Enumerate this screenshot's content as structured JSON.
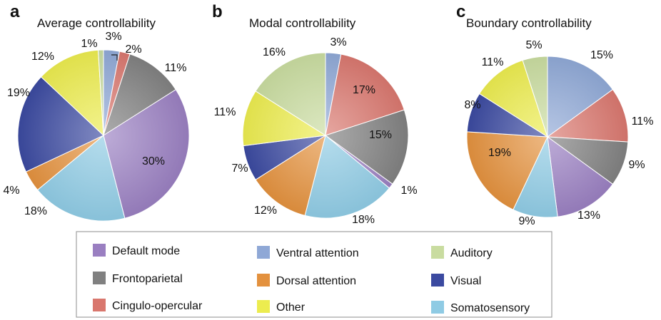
{
  "categories": [
    "Default mode",
    "Frontoparietal",
    "Cingulo-opercular",
    "Ventral attention",
    "Dorsal attention",
    "Other",
    "Auditory",
    "Visual",
    "Somatosensory"
  ],
  "colors": {
    "Default mode": "#9a7fc1",
    "Frontoparietal": "#808080",
    "Cingulo-opercular": "#d9776e",
    "Ventral attention": "#8fa8d6",
    "Dorsal attention": "#e3913e",
    "Other": "#ecec4f",
    "Auditory": "#c9dca0",
    "Visual": "#3b4aa0",
    "Somatosensory": "#8fcbe4"
  },
  "chart_data": [
    {
      "type": "pie",
      "panel": "a",
      "title": "Average controllability",
      "slices": [
        {
          "category": "Ventral attention",
          "value": 3,
          "label": "3%"
        },
        {
          "category": "Cingulo-opercular",
          "value": 2,
          "label": "2%"
        },
        {
          "category": "Frontoparietal",
          "value": 11,
          "label": "11%"
        },
        {
          "category": "Default mode",
          "value": 30,
          "label": "30%"
        },
        {
          "category": "Somatosensory",
          "value": 18,
          "label": "18%"
        },
        {
          "category": "Dorsal attention",
          "value": 4,
          "label": "4%"
        },
        {
          "category": "Visual",
          "value": 19,
          "label": "19%"
        },
        {
          "category": "Other",
          "value": 12,
          "label": "12%"
        },
        {
          "category": "Auditory",
          "value": 1,
          "label": "1%"
        }
      ]
    },
    {
      "type": "pie",
      "panel": "b",
      "title": "Modal controllability",
      "slices": [
        {
          "category": "Ventral attention",
          "value": 3,
          "label": "3%"
        },
        {
          "category": "Cingulo-opercular",
          "value": 17,
          "label": "17%"
        },
        {
          "category": "Frontoparietal",
          "value": 15,
          "label": "15%"
        },
        {
          "category": "Default mode",
          "value": 1,
          "label": "1%"
        },
        {
          "category": "Somatosensory",
          "value": 18,
          "label": "18%"
        },
        {
          "category": "Dorsal attention",
          "value": 12,
          "label": "12%"
        },
        {
          "category": "Visual",
          "value": 7,
          "label": "7%"
        },
        {
          "category": "Other",
          "value": 11,
          "label": "11%"
        },
        {
          "category": "Auditory",
          "value": 16,
          "label": "16%"
        }
      ]
    },
    {
      "type": "pie",
      "panel": "c",
      "title": "Boundary controllability",
      "slices": [
        {
          "category": "Ventral attention",
          "value": 15,
          "label": "15%"
        },
        {
          "category": "Cingulo-opercular",
          "value": 11,
          "label": "11%"
        },
        {
          "category": "Frontoparietal",
          "value": 9,
          "label": "9%"
        },
        {
          "category": "Default mode",
          "value": 13,
          "label": "13%"
        },
        {
          "category": "Somatosensory",
          "value": 9,
          "label": "9%"
        },
        {
          "category": "Dorsal attention",
          "value": 19,
          "label": "19%"
        },
        {
          "category": "Visual",
          "value": 8,
          "label": "8%"
        },
        {
          "category": "Other",
          "value": 11,
          "label": "11%"
        },
        {
          "category": "Auditory",
          "value": 5,
          "label": "5%"
        }
      ]
    }
  ]
}
